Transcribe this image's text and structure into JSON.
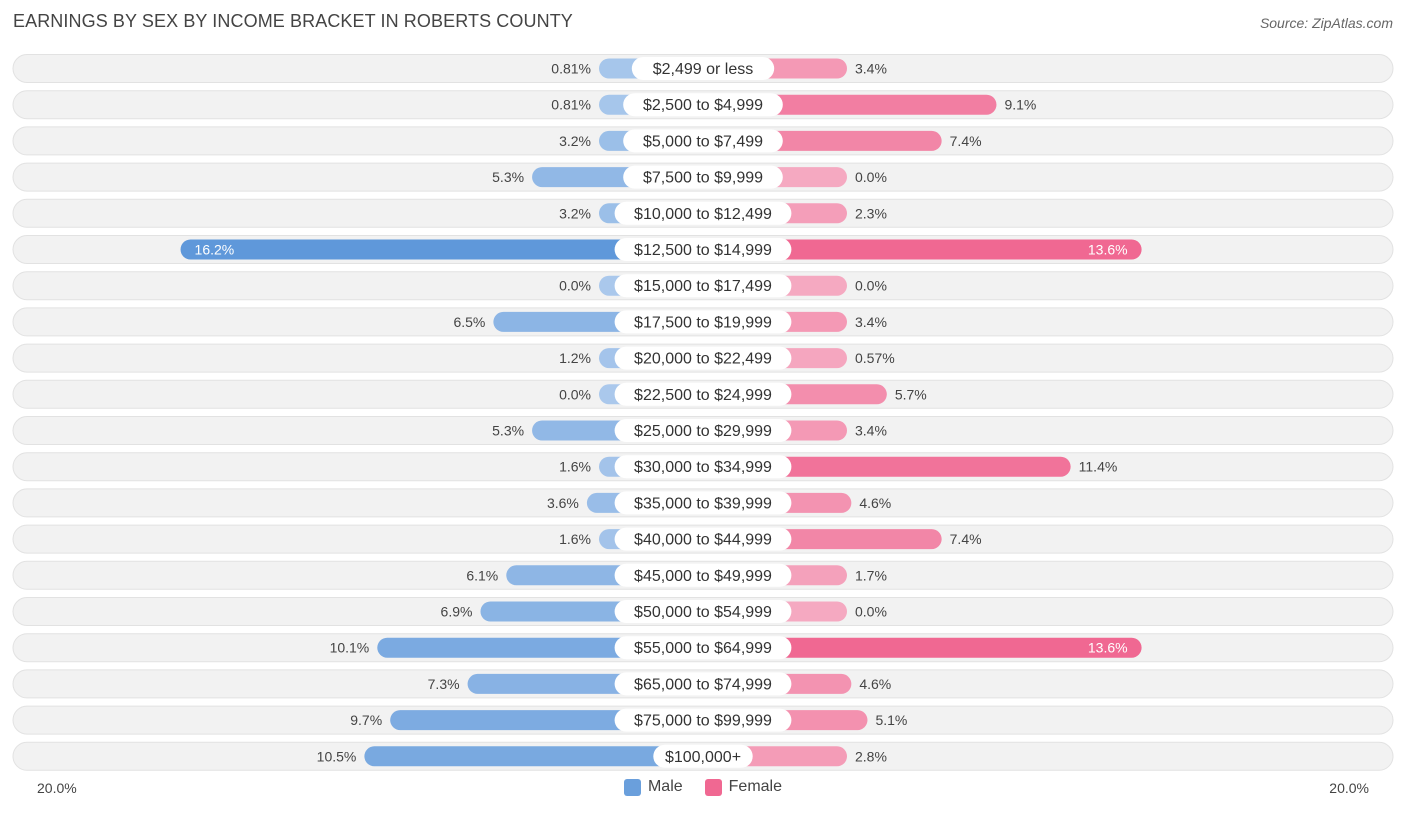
{
  "title": "EARNINGS BY SEX BY INCOME BRACKET IN ROBERTS COUNTY",
  "source": "Source: ZipAtlas.com",
  "axis": {
    "left_label": "20.0%",
    "right_label": "20.0%"
  },
  "legend": [
    {
      "name": "Male",
      "color": "#6a9fdc"
    },
    {
      "name": "Female",
      "color": "#f06892"
    }
  ],
  "chart_data": {
    "type": "bar",
    "orientation": "diverging-horizontal",
    "title": "EARNINGS BY SEX BY INCOME BRACKET IN ROBERTS COUNTY",
    "xlim": [
      -20,
      20
    ],
    "categories": [
      "$2,499 or less",
      "$2,500 to $4,999",
      "$5,000 to $7,499",
      "$7,500 to $9,999",
      "$10,000 to $12,499",
      "$12,500 to $14,999",
      "$15,000 to $17,499",
      "$17,500 to $19,999",
      "$20,000 to $22,499",
      "$22,500 to $24,999",
      "$25,000 to $29,999",
      "$30,000 to $34,999",
      "$35,000 to $39,999",
      "$40,000 to $44,999",
      "$45,000 to $49,999",
      "$50,000 to $54,999",
      "$55,000 to $64,999",
      "$65,000 to $74,999",
      "$75,000 to $99,999",
      "$100,000+"
    ],
    "series": [
      {
        "name": "Male",
        "values": [
          0.81,
          0.81,
          3.2,
          5.3,
          3.2,
          16.2,
          0.0,
          6.5,
          1.2,
          0.0,
          5.3,
          1.6,
          3.6,
          1.6,
          6.1,
          6.9,
          10.1,
          7.3,
          9.7,
          10.5
        ],
        "labels": [
          "0.81%",
          "0.81%",
          "3.2%",
          "5.3%",
          "3.2%",
          "16.2%",
          "0.0%",
          "6.5%",
          "1.2%",
          "0.0%",
          "5.3%",
          "1.6%",
          "3.6%",
          "1.6%",
          "6.1%",
          "6.9%",
          "10.1%",
          "7.3%",
          "9.7%",
          "10.5%"
        ]
      },
      {
        "name": "Female",
        "values": [
          3.4,
          9.1,
          7.4,
          0.0,
          2.3,
          13.6,
          0.0,
          3.4,
          0.57,
          5.7,
          3.4,
          11.4,
          4.6,
          7.4,
          1.7,
          0.0,
          13.6,
          4.6,
          5.1,
          2.8
        ],
        "labels": [
          "3.4%",
          "9.1%",
          "7.4%",
          "0.0%",
          "2.3%",
          "13.6%",
          "0.0%",
          "3.4%",
          "0.57%",
          "5.7%",
          "3.4%",
          "11.4%",
          "4.6%",
          "7.4%",
          "1.7%",
          "0.0%",
          "13.6%",
          "4.6%",
          "5.1%",
          "2.8%"
        ]
      }
    ]
  }
}
